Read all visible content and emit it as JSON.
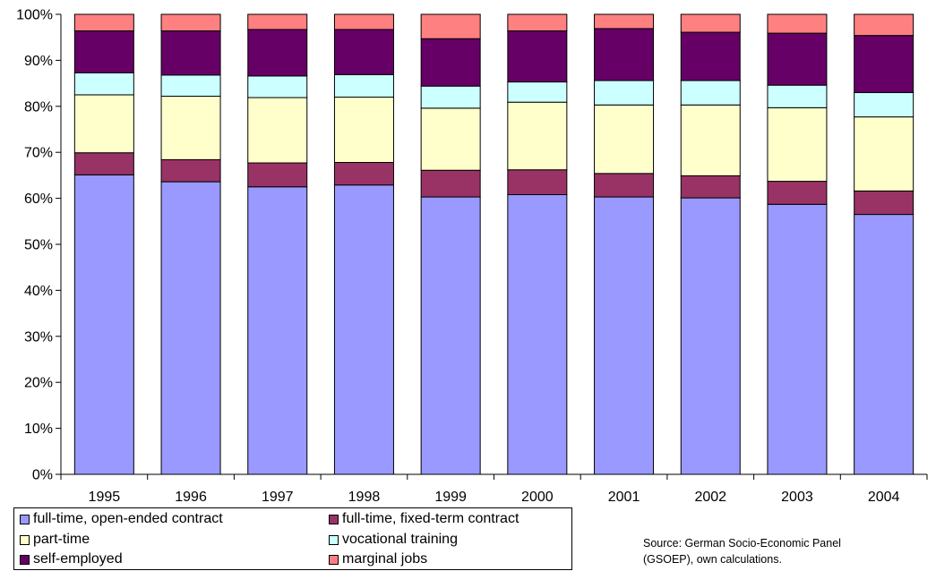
{
  "chart_data": {
    "type": "bar",
    "stacked": true,
    "categories": [
      "1995",
      "1996",
      "1997",
      "1998",
      "1999",
      "2000",
      "2001",
      "2002",
      "2003",
      "2004"
    ],
    "yticks": [
      "0%",
      "10%",
      "20%",
      "30%",
      "40%",
      "50%",
      "60%",
      "70%",
      "80%",
      "90%",
      "100%"
    ],
    "ylim": [
      0,
      100
    ],
    "grid": false,
    "legend_position": "bottom",
    "series": [
      {
        "name": "full-time, open-ended contract",
        "color": "#9999ff",
        "values": [
          65.1,
          63.6,
          62.5,
          62.9,
          60.3,
          60.8,
          60.3,
          60.1,
          58.7,
          56.5
        ]
      },
      {
        "name": "full-time, fixed-term contract",
        "color": "#993366",
        "values": [
          4.8,
          4.8,
          5.2,
          4.9,
          5.8,
          5.4,
          5.1,
          4.8,
          5.0,
          5.1
        ]
      },
      {
        "name": "part-time",
        "color": "#ffffcc",
        "values": [
          12.6,
          13.8,
          14.2,
          14.2,
          13.5,
          14.7,
          14.9,
          15.4,
          16.0,
          16.1
        ]
      },
      {
        "name": "vocational training",
        "color": "#ccffff",
        "values": [
          4.8,
          4.6,
          4.7,
          4.9,
          4.8,
          4.4,
          5.3,
          5.3,
          4.9,
          5.3
        ]
      },
      {
        "name": "self-employed",
        "color": "#660066",
        "values": [
          9.1,
          9.6,
          10.1,
          9.8,
          10.3,
          11.1,
          11.3,
          10.5,
          11.3,
          12.4
        ]
      },
      {
        "name": "marginal jobs",
        "color": "#ff8080",
        "values": [
          3.6,
          3.6,
          3.3,
          3.3,
          5.3,
          3.6,
          3.1,
          3.9,
          4.1,
          4.6
        ]
      }
    ],
    "source_note": [
      "Source: German Socio-Economic Panel",
      "(GSOEP), own calculations."
    ]
  }
}
